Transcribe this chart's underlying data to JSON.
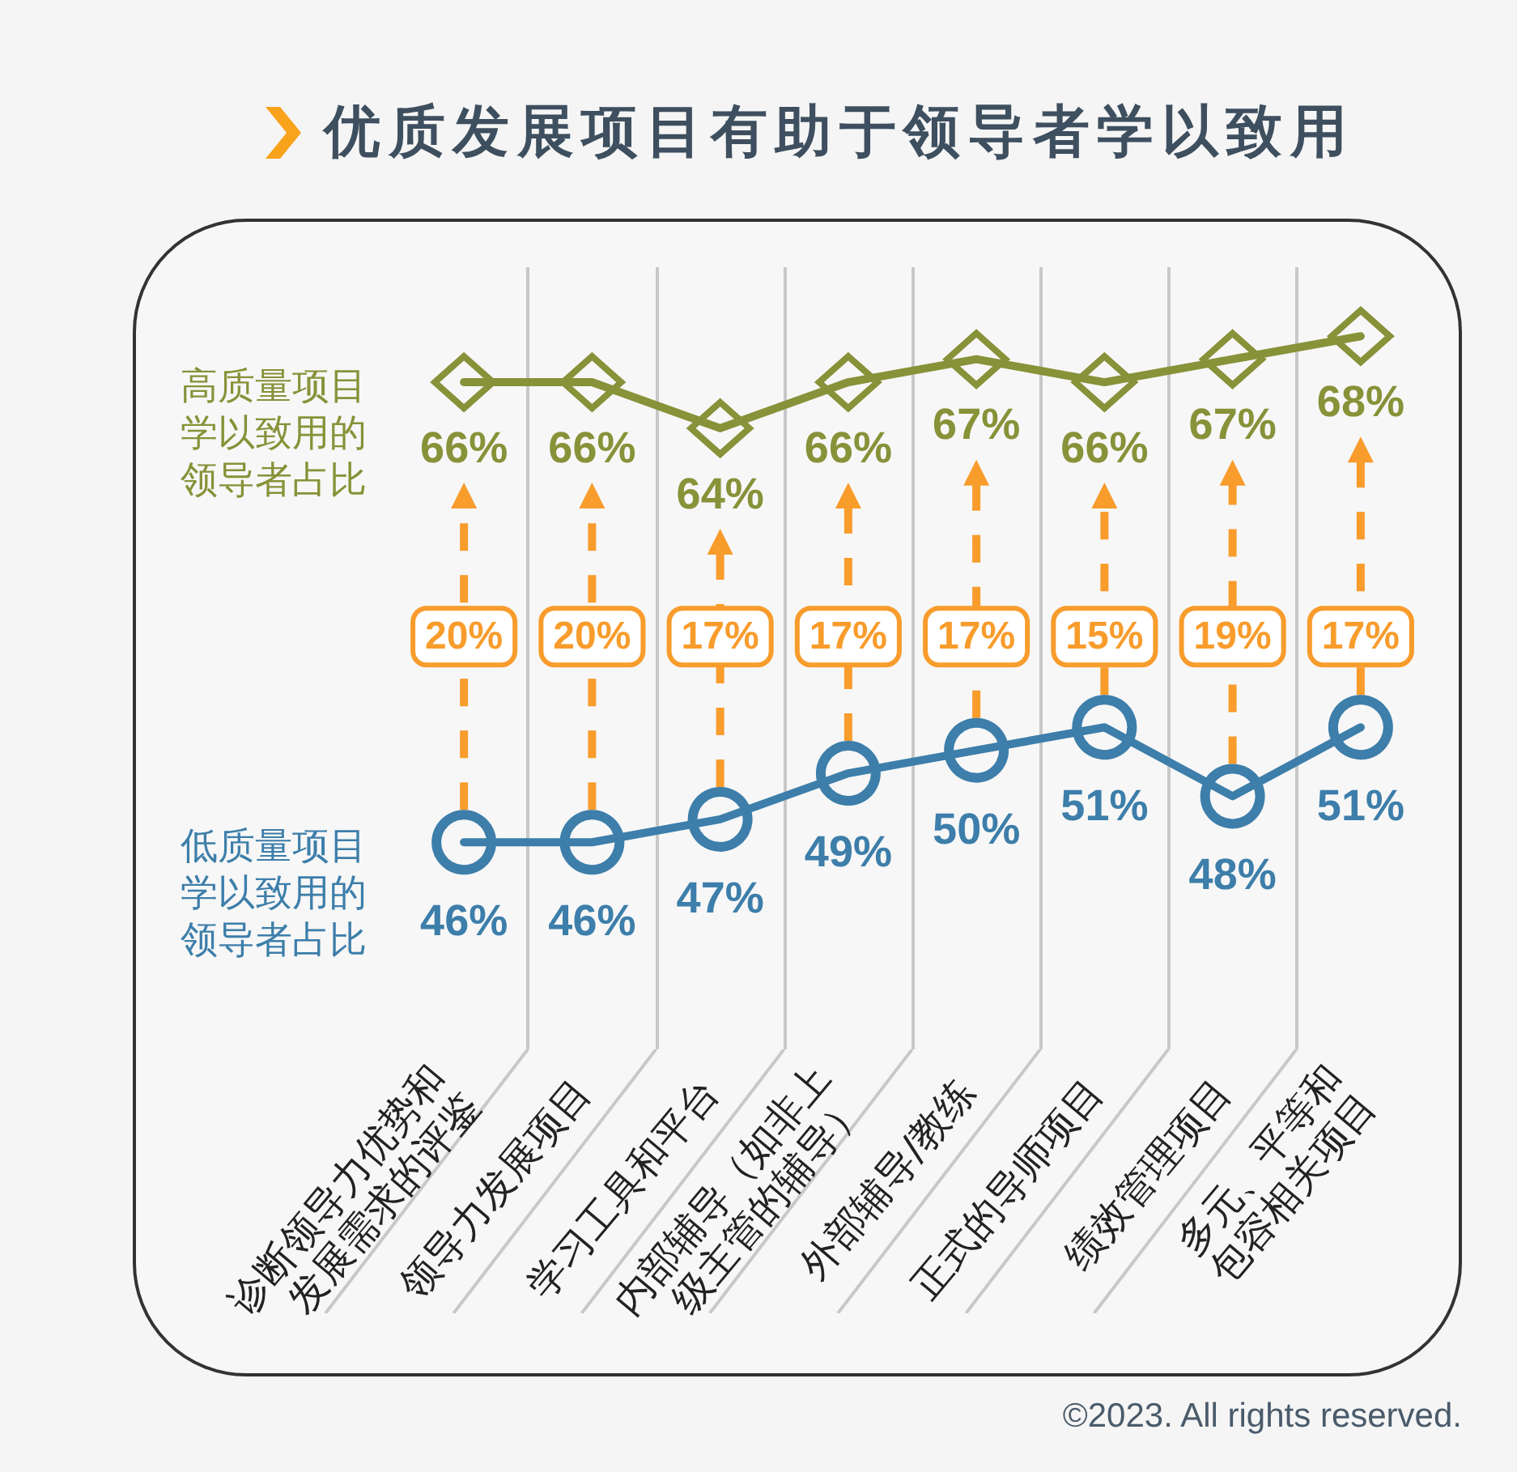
{
  "chart_data": {
    "type": "line",
    "title": "优质发展项目有助于领导者学以致用",
    "categories": [
      "诊断领导力优势和发展需求的评鉴",
      "领导力发展项目",
      "学习工具和平台",
      "内部辅导（如非上级主管的辅导）",
      "外部辅导/教练",
      "正式的导师项目",
      "绩效管理项目",
      "多元、平等和包容相关项目"
    ],
    "series": [
      {
        "name": "高质量项目学以致用的领导者占比",
        "color": "#879239",
        "marker": "diamond",
        "values": [
          66,
          66,
          64,
          66,
          67,
          66,
          67,
          68
        ],
        "value_labels": [
          "66%",
          "66%",
          "64%",
          "66%",
          "67%",
          "66%",
          "67%",
          "68%"
        ]
      },
      {
        "name": "低质量项目学以致用的领导者占比",
        "color": "#3d7eaa",
        "marker": "circle",
        "values": [
          46,
          46,
          47,
          49,
          50,
          51,
          48,
          51
        ],
        "value_labels": [
          "46%",
          "46%",
          "47%",
          "49%",
          "50%",
          "51%",
          "48%",
          "51%"
        ]
      }
    ],
    "ylim": [
      37,
      71
    ],
    "grid": "x",
    "tick_labels": "x",
    "annotations": [
      "20%",
      "20%",
      "17%",
      "17%",
      "17%",
      "15%",
      "19%",
      "17%",
      "©2023. All rights reserved."
    ]
  }
}
